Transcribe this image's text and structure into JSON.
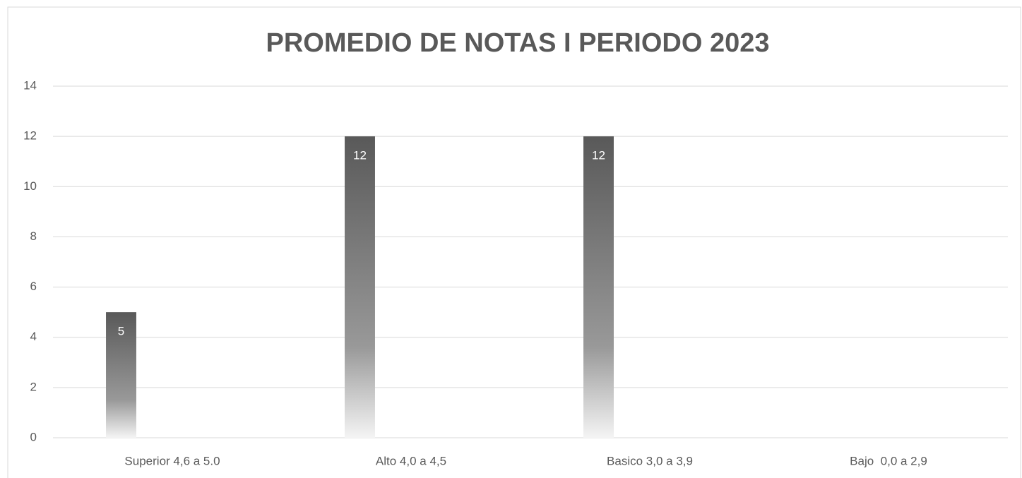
{
  "chart_data": {
    "type": "bar",
    "title": "PROMEDIO DE NOTAS I PERIODO 2023",
    "categories": [
      "Superior 4,6 a 5.0",
      "Alto 4,0 a 4,5",
      "Basico 3,0 a 3,9",
      "Bajo  0,0 a 2,9"
    ],
    "values": [
      5,
      12,
      12,
      null
    ],
    "color": "#595959",
    "ylim": [
      0,
      14
    ],
    "yticks": [
      0,
      2,
      4,
      6,
      8,
      10,
      12,
      14
    ],
    "grid": true
  }
}
